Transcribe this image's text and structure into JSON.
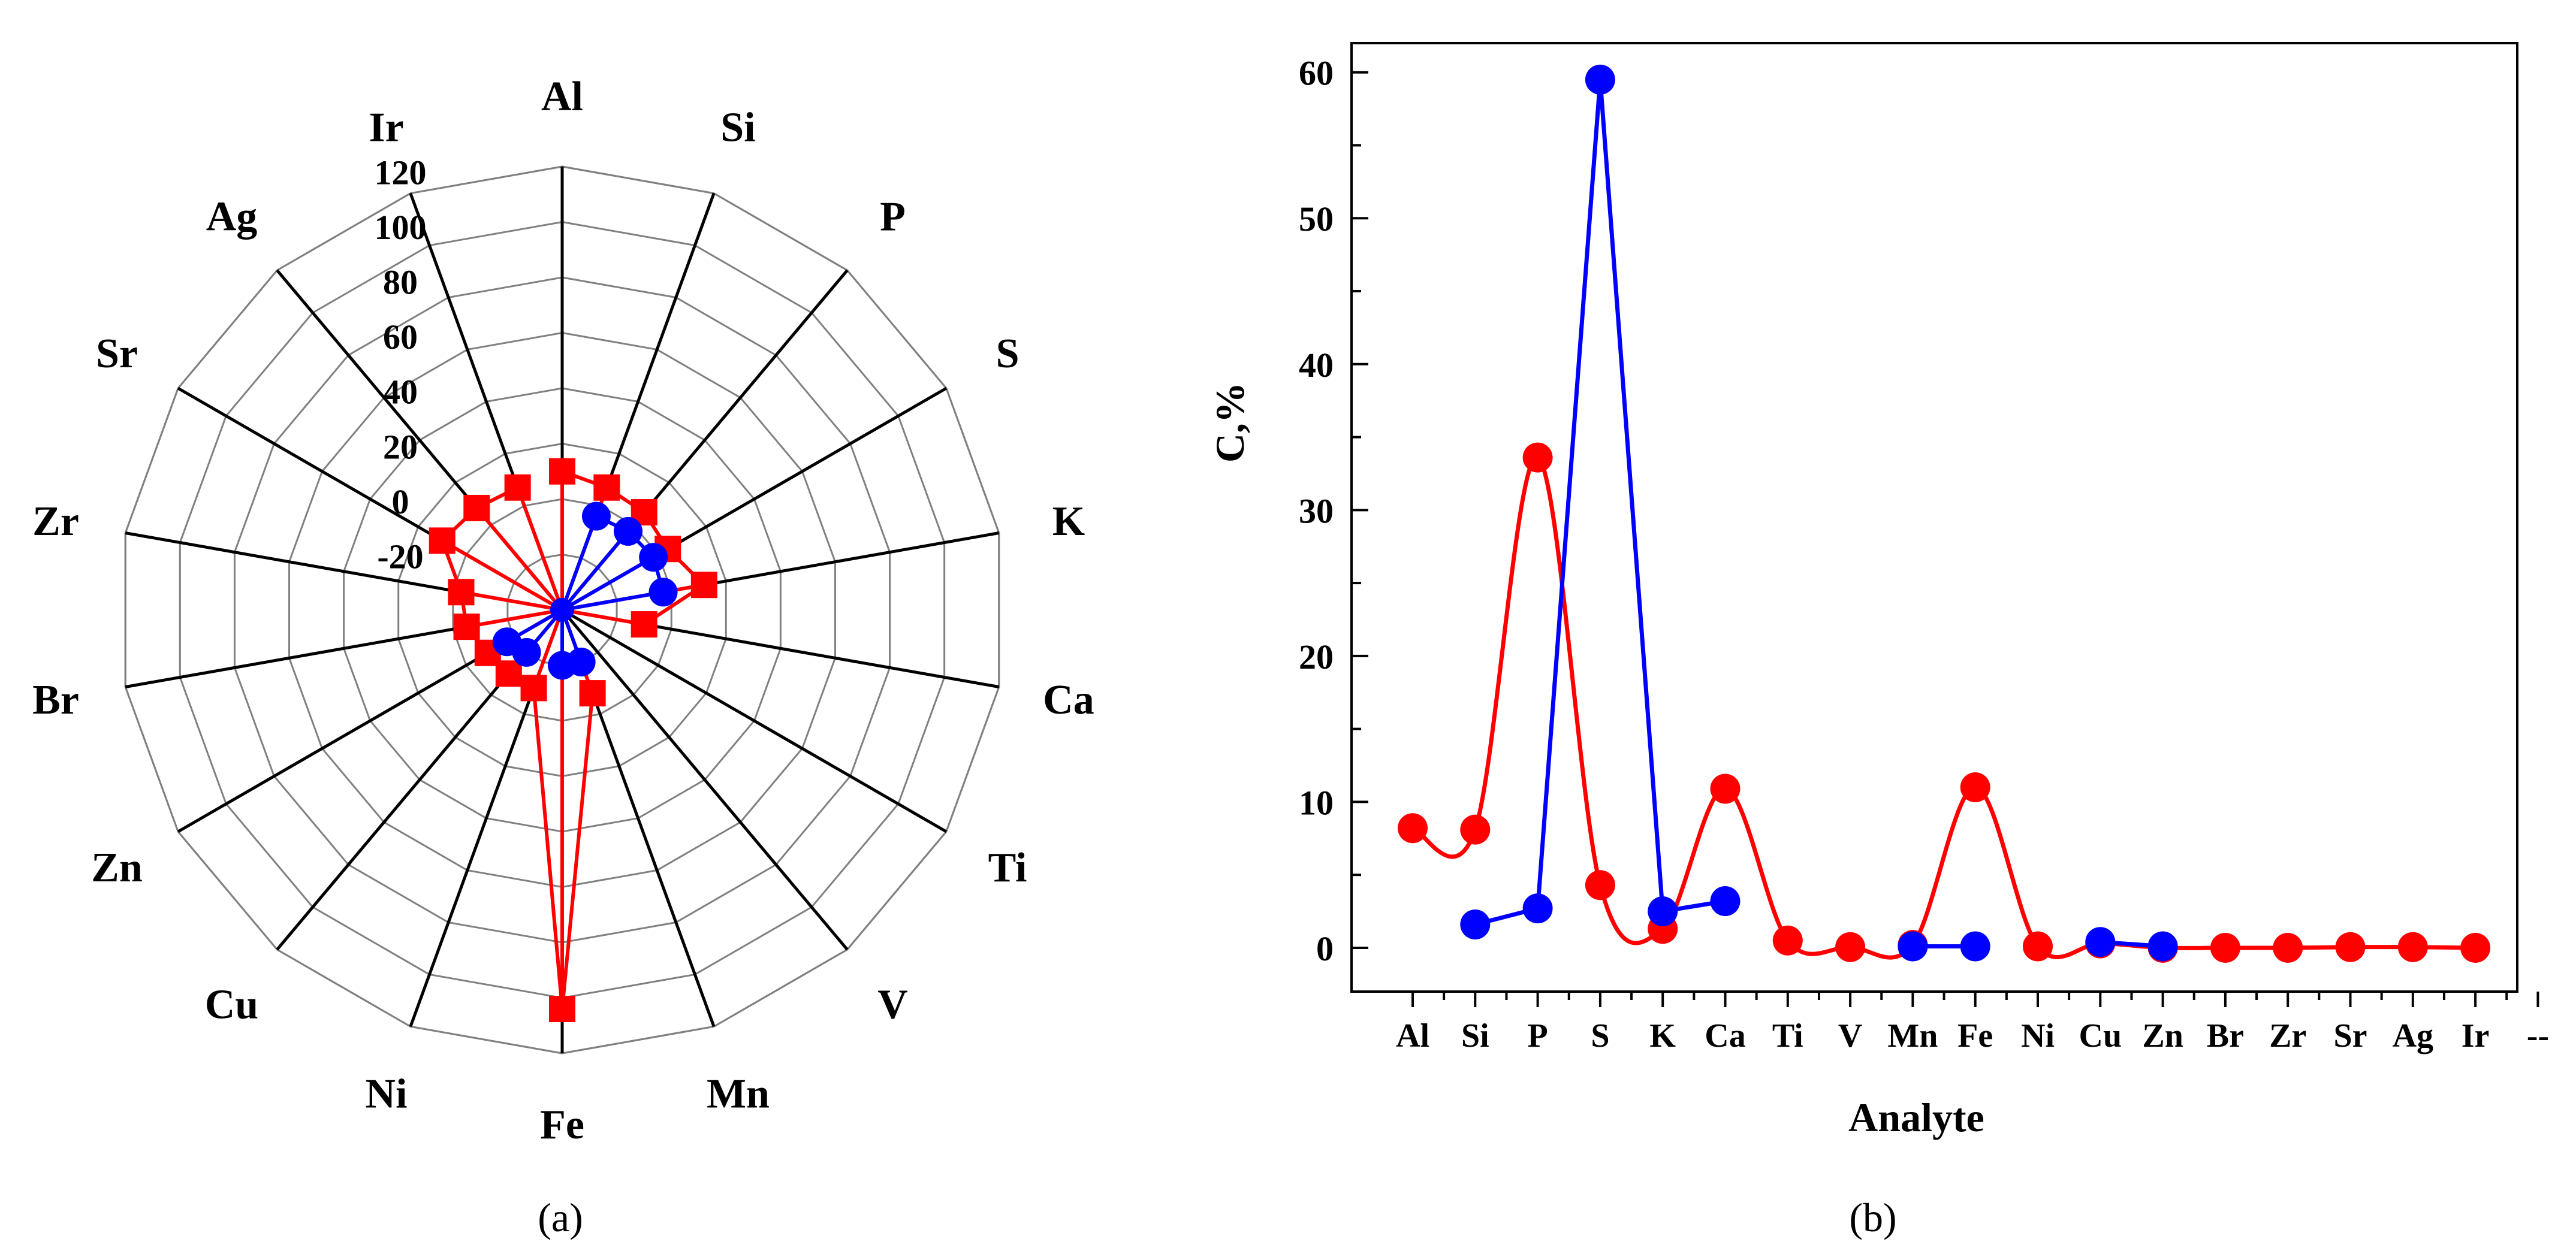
{
  "panels": {
    "a_label": "(a)",
    "b_label": "(b)"
  },
  "chart_data": [
    {
      "type": "radar",
      "panel": "a",
      "categories": [
        "Al",
        "Si",
        "P",
        "S",
        "K",
        "Ca",
        "Ti",
        "V",
        "Mn",
        "Fe",
        "Ni",
        "Cu",
        "Zn",
        "Br",
        "Zr",
        "Sr",
        "Ag",
        "Ir"
      ],
      "radial_ticks": [
        "-20",
        "0",
        "20",
        "40",
        "60",
        "80",
        "100",
        "120"
      ],
      "rlim": [
        -40,
        120
      ],
      "series": [
        {
          "name": "red",
          "color": "#ff0000",
          "marker": "square",
          "values": [
            10,
            7,
            6,
            4,
            12,
            -10,
            null,
            null,
            -8,
            104,
            -10,
            -10,
            -9,
            -5,
            -3,
            10,
            8,
            7
          ]
        },
        {
          "name": "blue",
          "color": "#0000ff",
          "marker": "circle",
          "values": [
            null,
            -4,
            -3,
            -2,
            -3,
            null,
            null,
            null,
            -20,
            -20,
            null,
            -20,
            -17,
            null,
            null,
            null,
            null,
            null
          ]
        }
      ],
      "lines_to_center": true
    },
    {
      "type": "line",
      "panel": "b",
      "categories": [
        "Al",
        "Si",
        "P",
        "S",
        "K",
        "Ca",
        "Ti",
        "V",
        "Mn",
        "Fe",
        "Ni",
        "Cu",
        "Zn",
        "Br",
        "Zr",
        "Sr",
        "Ag",
        "Ir",
        "--"
      ],
      "xlabel": "Analyte",
      "ylabel": "C,%",
      "yticks": [
        "0",
        "10",
        "20",
        "30",
        "40",
        "50",
        "60"
      ],
      "ylim": [
        -3,
        62
      ],
      "series": [
        {
          "name": "red",
          "color": "#ff0000",
          "smooth": true,
          "values": [
            8.2,
            8.1,
            33.6,
            4.3,
            1.3,
            10.9,
            0.5,
            0.05,
            0.2,
            11.0,
            0.1,
            0.3,
            0.0,
            0.0,
            0.0,
            0.05,
            0.05,
            0.0,
            null
          ]
        },
        {
          "name": "blue",
          "color": "#0000ff",
          "smooth": false,
          "values": [
            null,
            1.6,
            2.7,
            59.5,
            2.5,
            3.2,
            null,
            null,
            0.1,
            0.1,
            null,
            0.4,
            0.1,
            null,
            null,
            null,
            null,
            null,
            null
          ]
        }
      ]
    }
  ]
}
